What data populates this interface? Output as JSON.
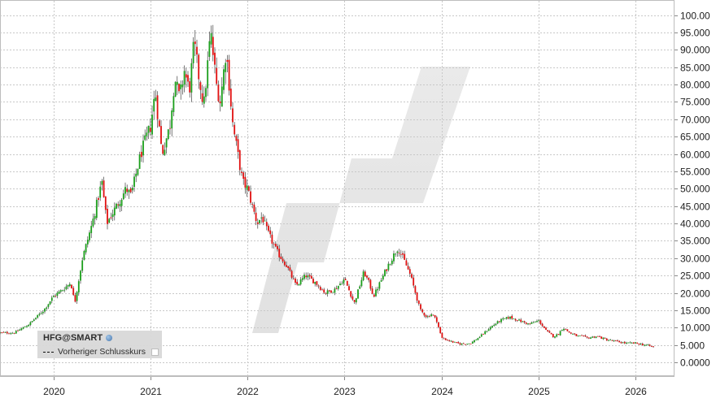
{
  "chart_data": {
    "type": "candlestick",
    "symbol": "HFG@SMART",
    "legend": {
      "previous_close_label": "Vorheriger Schlusskurs",
      "placement": "bottom-left"
    },
    "x_ticks": [
      "2020",
      "2021",
      "2022",
      "2023",
      "2024",
      "2025",
      "2026"
    ],
    "y_ticks": [
      "0.0000",
      "5.000",
      "10.000",
      "15.000",
      "20.000",
      "25.000",
      "30.000",
      "35.000",
      "40.000",
      "45.000",
      "50.000",
      "55.000",
      "60.000",
      "65.000",
      "70.000",
      "75.000",
      "80.000",
      "85.000",
      "90.000",
      "95.000",
      "100.00"
    ],
    "ylim": [
      0,
      100
    ],
    "xlim": [
      2019.45,
      2026.4
    ],
    "grid": true,
    "y_axis_side": "right",
    "up_color": "#1a9e1a",
    "down_color": "#e01010",
    "x": [
      2019.45,
      2019.6,
      2019.75,
      2019.9,
      2020.0,
      2020.1,
      2020.18,
      2020.22,
      2020.3,
      2020.4,
      2020.5,
      2020.55,
      2020.65,
      2020.75,
      2020.8,
      2020.9,
      2021.0,
      2021.05,
      2021.12,
      2021.2,
      2021.25,
      2021.3,
      2021.35,
      2021.4,
      2021.45,
      2021.5,
      2021.55,
      2021.62,
      2021.68,
      2021.72,
      2021.78,
      2021.85,
      2021.9,
      2021.95,
      2022.0,
      2022.1,
      2022.15,
      2022.2,
      2022.3,
      2022.4,
      2022.5,
      2022.6,
      2022.7,
      2022.8,
      2022.9,
      2023.0,
      2023.1,
      2023.2,
      2023.25,
      2023.3,
      2023.4,
      2023.45,
      2023.55,
      2023.62,
      2023.68,
      2023.72,
      2023.78,
      2023.85,
      2023.9,
      2023.95,
      2024.0,
      2024.1,
      2024.15,
      2024.2,
      2024.3,
      2024.4,
      2024.5,
      2024.6,
      2024.7,
      2024.8,
      2024.9,
      2025.0,
      2025.08,
      2025.15,
      2025.2,
      2025.25,
      2025.32,
      2025.4,
      2025.45,
      2025.5,
      2025.6,
      2025.7,
      2025.8,
      2025.9,
      2026.0,
      2026.1,
      2026.2
    ],
    "close": [
      8.5,
      8.5,
      11,
      15,
      19,
      21,
      23,
      17,
      30,
      40,
      52,
      40,
      45,
      50,
      48,
      60,
      68,
      78,
      60,
      68,
      82,
      76,
      84,
      78,
      92,
      82,
      74,
      95,
      80,
      75,
      90,
      68,
      60,
      52,
      50,
      40,
      42,
      38,
      32,
      28,
      22,
      25,
      23,
      20,
      21,
      24,
      17,
      26,
      23,
      19,
      25,
      28,
      33,
      29,
      25,
      21,
      15,
      13,
      14,
      12,
      7,
      6,
      5.5,
      5.3,
      5.5,
      7.5,
      10,
      12,
      13,
      12,
      11,
      12,
      9,
      7.5,
      8,
      10,
      8.5,
      7.5,
      7.5,
      7,
      7.5,
      6.5,
      6,
      5.5,
      5.5,
      5,
      4.3
    ]
  }
}
